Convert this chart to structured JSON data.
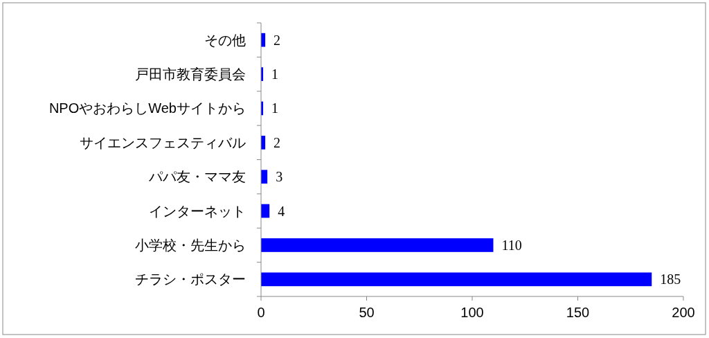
{
  "chart_data": {
    "type": "bar",
    "orientation": "horizontal",
    "categories": [
      "その他",
      "戸田市教育委員会",
      "NPOやおわらしWebサイトから",
      "サイエンスフェスティバル",
      "パパ友・ママ友",
      "インターネット",
      "小学校・先生から",
      "チラシ・ポスター"
    ],
    "values": [
      2,
      1,
      1,
      2,
      3,
      4,
      110,
      185
    ],
    "color": "#0000ff",
    "xlim": [
      0,
      200
    ],
    "xticks": [
      0,
      50,
      100,
      150,
      200
    ],
    "data_labels": true
  }
}
